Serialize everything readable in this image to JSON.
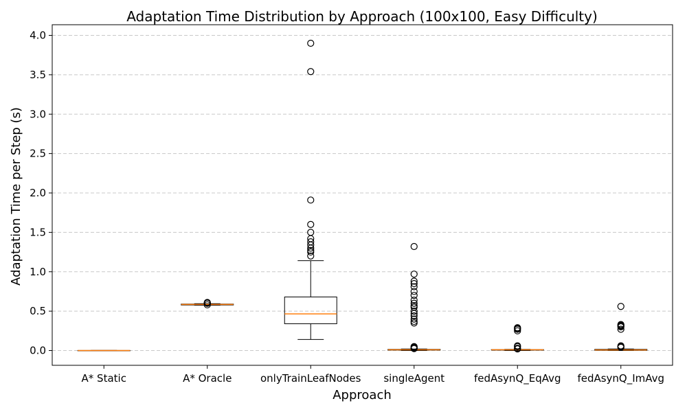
{
  "chart_data": {
    "type": "box",
    "title": "Adaptation Time Distribution by Approach (100x100, Easy Difficulty)",
    "xlabel": "Approach",
    "ylabel": "Adaptation Time per Step (s)",
    "ylim": [
      -0.19,
      4.12
    ],
    "yticks": [
      "0.0",
      "0.5",
      "1.0",
      "1.5",
      "2.0",
      "2.5",
      "3.0",
      "3.5",
      "4.0"
    ],
    "grid": "y",
    "colors": {
      "box": "#000000",
      "median": "#ff7f0e",
      "grid": "#c8c8c8"
    },
    "categories": [
      "A* Static",
      "A* Oracle",
      "onlyTrainLeafNodes",
      "singleAgent",
      "fedAsynQ_EqAvg",
      "fedAsynQ_ImAvg"
    ],
    "boxes": [
      {
        "whislo": 0.0,
        "q1": 0.0,
        "med": 0.0,
        "q3": 0.001,
        "whishi": 0.002,
        "fliers": []
      },
      {
        "whislo": 0.575,
        "q1": 0.578,
        "med": 0.585,
        "q3": 0.59,
        "whishi": 0.595,
        "fliers": [
          0.6,
          0.61,
          0.605,
          0.58
        ]
      },
      {
        "whislo": 0.14,
        "q1": 0.34,
        "med": 0.465,
        "q3": 0.68,
        "whishi": 1.14,
        "fliers": [
          3.9,
          3.54,
          1.91,
          1.6,
          1.5,
          1.42,
          1.38,
          1.34,
          1.3,
          1.27,
          1.25,
          1.2
        ]
      },
      {
        "whislo": 0.0,
        "q1": 0.005,
        "med": 0.01,
        "q3": 0.015,
        "whishi": 0.02,
        "fliers": [
          1.32,
          0.97,
          0.88,
          0.85,
          0.81,
          0.75,
          0.7,
          0.64,
          0.6,
          0.57,
          0.55,
          0.5,
          0.47,
          0.44,
          0.4,
          0.37,
          0.35,
          0.05,
          0.04,
          0.03,
          0.025
        ]
      },
      {
        "whislo": 0.0,
        "q1": 0.005,
        "med": 0.01,
        "q3": 0.012,
        "whishi": 0.015,
        "fliers": [
          0.29,
          0.28,
          0.27,
          0.25,
          0.06,
          0.05,
          0.03,
          0.02
        ]
      },
      {
        "whislo": 0.0,
        "q1": 0.002,
        "med": 0.008,
        "q3": 0.015,
        "whishi": 0.02,
        "fliers": [
          0.56,
          0.33,
          0.32,
          0.31,
          0.3,
          0.27,
          0.06,
          0.05,
          0.04
        ]
      }
    ]
  }
}
